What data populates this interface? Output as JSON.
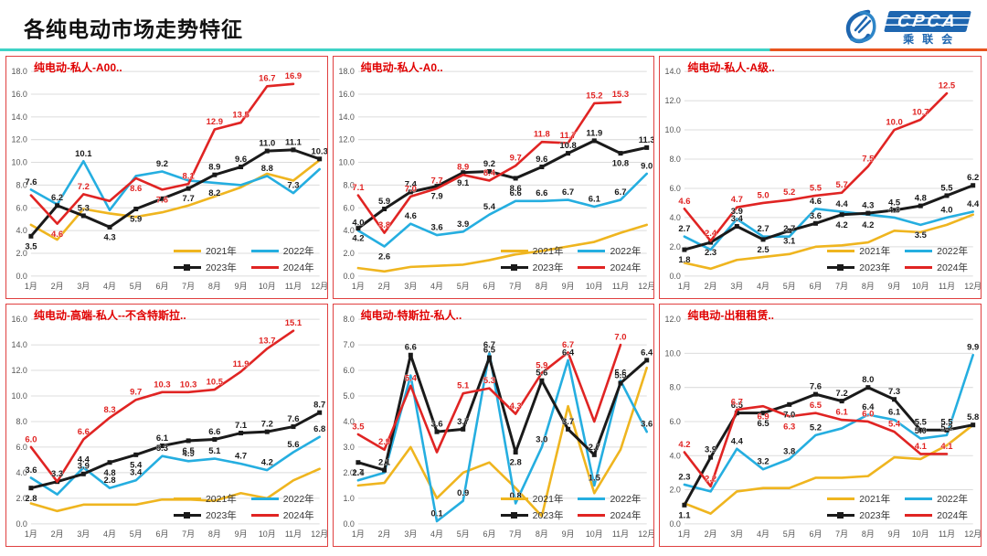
{
  "header": {
    "title": "各纯电动市场走势特征"
  },
  "logo": {
    "cpca_text": "CPCA",
    "sub_text": "乘联会"
  },
  "months": [
    "1月",
    "2月",
    "3月",
    "4月",
    "5月",
    "6月",
    "7月",
    "8月",
    "9月",
    "10月",
    "11月",
    "12月"
  ],
  "legend": [
    "2021年",
    "2022年",
    "2023年",
    "2024年"
  ],
  "colors": {
    "y2021": "#EFB51F",
    "y2022": "#25AEE0",
    "y2023": "#1A1A1A",
    "y2024": "#E02423",
    "grid": "#DCDCDC",
    "axis_text": "#555555",
    "title_red": "#E00000",
    "panel_border": "#E04040",
    "rule_teal": "#3ED3C6",
    "rule_orange": "#E8541E",
    "logo_blue": "#1E66B0"
  },
  "chart_data": [
    {
      "type": "line",
      "title": "纯电动-私人-A00..",
      "ylim": [
        0,
        18
      ],
      "ytick_step": 2,
      "grid": true,
      "legend_position": "bottom-right",
      "series": [
        {
          "name": "2021年",
          "color_key": "y2021",
          "values": [
            4.5,
            3.2,
            5.9,
            5.5,
            5.2,
            5.6,
            6.2,
            7.0,
            7.8,
            9.0,
            8.4,
            10.2
          ],
          "labels": [
            null,
            null,
            null,
            null,
            null,
            null,
            null,
            null,
            null,
            null,
            null,
            null
          ]
        },
        {
          "name": "2022年",
          "color_key": "y2022",
          "label_color": "#1A1A1A",
          "values": [
            7.6,
            6.3,
            10.1,
            5.8,
            8.8,
            9.2,
            8.4,
            8.2,
            8.0,
            8.8,
            7.3,
            9.4
          ],
          "labels": [
            "7.6",
            null,
            "10.1",
            null,
            null,
            "9.2",
            null,
            [
              "8.2",
              "b"
            ],
            null,
            "8.8",
            "7.3",
            null
          ]
        },
        {
          "name": "2023年",
          "color_key": "y2023",
          "marker": true,
          "values": [
            3.5,
            6.2,
            5.3,
            4.3,
            5.9,
            6.8,
            7.7,
            8.9,
            9.6,
            11.0,
            11.1,
            10.3
          ],
          "labels": [
            [
              "3.5",
              "b"
            ],
            "6.2",
            "5.3",
            [
              "4.3",
              "b"
            ],
            [
              "5.9",
              "b"
            ],
            null,
            [
              "7.7",
              "b"
            ],
            "8.9",
            "9.6",
            "11.0",
            "11.1",
            "10.3"
          ]
        },
        {
          "name": "2024年",
          "color_key": "y2024",
          "values": [
            7.1,
            4.6,
            7.2,
            6.6,
            8.6,
            7.6,
            8.1,
            12.9,
            13.5,
            16.7,
            16.9
          ],
          "labels": [
            null,
            [
              "4.6",
              "b"
            ],
            "7.2",
            null,
            [
              "8.6",
              "b"
            ],
            [
              "7.6",
              "b"
            ],
            "8.1",
            "12.9",
            "13.5",
            "16.7",
            "16.9"
          ]
        }
      ]
    },
    {
      "type": "line",
      "title": "纯电动-私人-A0..",
      "ylim": [
        0,
        18
      ],
      "ytick_step": 2,
      "grid": true,
      "legend_position": "bottom-right",
      "series": [
        {
          "name": "2021年",
          "color_key": "y2021",
          "values": [
            0.7,
            0.4,
            0.8,
            0.9,
            1.0,
            1.4,
            1.9,
            2.2,
            2.6,
            3.0,
            3.8,
            4.5
          ],
          "labels": [
            null,
            null,
            null,
            null,
            null,
            null,
            null,
            null,
            null,
            null,
            null,
            null
          ]
        },
        {
          "name": "2022年",
          "color_key": "y2022",
          "label_color": "#1A1A1A",
          "values": [
            4.0,
            2.6,
            4.6,
            3.6,
            3.9,
            5.4,
            6.6,
            6.6,
            6.7,
            6.1,
            6.7,
            9.0
          ],
          "labels": [
            "4.0",
            [
              "2.6",
              "b"
            ],
            "4.6",
            "3.6",
            "3.9",
            "5.4",
            "6.6",
            "6.6",
            "6.7",
            "6.1",
            "6.7",
            "9.0"
          ]
        },
        {
          "name": "2023年",
          "color_key": "y2023",
          "marker": true,
          "values": [
            4.2,
            5.9,
            7.4,
            7.9,
            9.1,
            9.2,
            8.6,
            9.6,
            10.8,
            11.9,
            10.8,
            11.3
          ],
          "labels": [
            [
              "4.2",
              "b"
            ],
            "5.9",
            "7.4",
            [
              "7.9",
              "b"
            ],
            [
              "9.1",
              "b"
            ],
            "9.2",
            [
              "8.6",
              "b"
            ],
            "9.6",
            "10.8",
            "11.9",
            [
              "10.8",
              "b"
            ],
            "11.3"
          ]
        },
        {
          "name": "2024年",
          "color_key": "y2024",
          "values": [
            7.1,
            3.8,
            7.0,
            7.7,
            8.9,
            8.4,
            9.7,
            11.8,
            11.7,
            15.2,
            15.3
          ],
          "labels": [
            "7.1",
            "3.8",
            "7.0",
            "7.7",
            "8.9",
            "8.4",
            "9.7",
            "11.8",
            "11.7",
            "15.2",
            "15.3"
          ]
        }
      ]
    },
    {
      "type": "line",
      "title": "纯电动-私人-A级..",
      "ylim": [
        0,
        14
      ],
      "ytick_step": 2,
      "grid": true,
      "legend_position": "bottom-right",
      "series": [
        {
          "name": "2021年",
          "color_key": "y2021",
          "values": [
            0.9,
            0.5,
            1.1,
            1.3,
            1.5,
            2.0,
            2.1,
            2.3,
            3.1,
            3.0,
            3.5,
            4.2
          ],
          "labels": [
            null,
            null,
            null,
            null,
            null,
            null,
            null,
            null,
            null,
            null,
            null,
            null
          ]
        },
        {
          "name": "2022年",
          "color_key": "y2022",
          "label_color": "#1A1A1A",
          "values": [
            2.7,
            1.8,
            3.9,
            2.7,
            2.7,
            4.6,
            4.4,
            4.2,
            4.0,
            3.5,
            4.0,
            4.4
          ],
          "labels": [
            "2.7",
            null,
            "3.9",
            "2.7",
            "2.7",
            "4.6",
            "4.4",
            [
              "4.2",
              "b"
            ],
            "4.0",
            [
              "3.5",
              "b"
            ],
            "4.0",
            "4.4"
          ]
        },
        {
          "name": "2023年",
          "color_key": "y2023",
          "marker": true,
          "values": [
            1.8,
            2.3,
            3.4,
            2.5,
            3.1,
            3.6,
            4.2,
            4.3,
            4.5,
            4.8,
            5.5,
            6.2
          ],
          "labels": [
            [
              "1.8",
              "b"
            ],
            [
              "2.3",
              "b"
            ],
            "3.4",
            [
              "2.5",
              "b"
            ],
            [
              "3.1",
              "b"
            ],
            "3.6",
            [
              "4.2",
              "b"
            ],
            "4.3",
            "4.5",
            "4.8",
            "5.5",
            "6.2"
          ]
        },
        {
          "name": "2024年",
          "color_key": "y2024",
          "values": [
            4.6,
            2.4,
            4.7,
            5.0,
            5.2,
            5.5,
            5.7,
            7.5,
            10.0,
            10.7,
            12.5
          ],
          "labels": [
            "4.6",
            "2.4",
            "4.7",
            "5.0",
            "5.2",
            "5.5",
            "5.7",
            "7.5",
            "10.0",
            "10.7",
            "12.5"
          ]
        }
      ]
    },
    {
      "type": "line",
      "title": "纯电动-高端-私人--不含特斯拉..",
      "ylim": [
        0,
        16
      ],
      "ytick_step": 2,
      "grid": true,
      "legend_position": "bottom-right",
      "series": [
        {
          "name": "2021年",
          "color_key": "y2021",
          "values": [
            1.6,
            1.0,
            1.5,
            1.5,
            1.5,
            1.9,
            1.9,
            1.8,
            2.4,
            2.0,
            3.4,
            4.3
          ],
          "labels": [
            null,
            null,
            null,
            null,
            null,
            null,
            null,
            null,
            null,
            null,
            null,
            null
          ]
        },
        {
          "name": "2022年",
          "color_key": "y2022",
          "label_color": "#1A1A1A",
          "values": [
            3.6,
            2.3,
            4.4,
            2.8,
            3.4,
            5.3,
            4.9,
            5.1,
            4.7,
            4.2,
            5.6,
            6.8
          ],
          "labels": [
            "3.6",
            null,
            "4.4",
            "2.8",
            "3.4",
            "5.3",
            "4.9",
            "5.1",
            "4.7",
            "4.2",
            "5.6",
            "6.8"
          ]
        },
        {
          "name": "2023年",
          "color_key": "y2023",
          "marker": true,
          "values": [
            2.8,
            3.3,
            3.9,
            4.8,
            5.4,
            6.1,
            6.5,
            6.6,
            7.1,
            7.2,
            7.6,
            8.7
          ],
          "labels": [
            [
              "2.8",
              "b"
            ],
            "3.3",
            "3.9",
            [
              "4.8",
              "b"
            ],
            [
              "5.4",
              "b"
            ],
            "6.1",
            [
              "6.5",
              "b"
            ],
            "6.6",
            "7.1",
            "7.2",
            "7.6",
            "8.7"
          ]
        },
        {
          "name": "2024年",
          "color_key": "y2024",
          "values": [
            6.0,
            3.3,
            6.6,
            8.3,
            9.7,
            10.3,
            10.3,
            10.5,
            11.9,
            13.7,
            15.1
          ],
          "labels": [
            "6.0",
            null,
            "6.6",
            "8.3",
            "9.7",
            "10.3",
            "10.3",
            "10.5",
            "11.9",
            "13.7",
            "15.1"
          ]
        }
      ]
    },
    {
      "type": "line",
      "title": "纯电动-特斯拉-私人..",
      "ylim": [
        0,
        8
      ],
      "ytick_step": 1,
      "grid": true,
      "legend_position": "bottom-right",
      "series": [
        {
          "name": "2021年",
          "color_key": "y2021",
          "values": [
            1.5,
            1.6,
            3.0,
            1.0,
            2.0,
            2.4,
            1.4,
            0.3,
            4.6,
            1.2,
            2.9,
            6.1
          ],
          "labels": [
            null,
            null,
            null,
            null,
            null,
            null,
            null,
            null,
            null,
            null,
            null,
            null
          ]
        },
        {
          "name": "2022年",
          "color_key": "y2022",
          "label_color": "#1A1A1A",
          "values": [
            1.7,
            2.0,
            5.8,
            0.1,
            0.9,
            6.7,
            0.8,
            3.0,
            6.4,
            1.5,
            5.6,
            3.6
          ],
          "labels": [
            "1.7",
            null,
            null,
            "0.1",
            "0.9",
            "6.7",
            "0.8",
            "3.0",
            "6.4",
            "1.5",
            "5.6",
            "3.6"
          ]
        },
        {
          "name": "2023年",
          "color_key": "y2023",
          "marker": true,
          "values": [
            2.4,
            2.1,
            6.6,
            3.6,
            3.7,
            6.5,
            2.8,
            5.6,
            3.7,
            2.7,
            5.5,
            6.4
          ],
          "labels": [
            [
              "2.4",
              "b"
            ],
            "2.1",
            "6.6",
            "3.6",
            "3.7",
            "6.5",
            [
              "2.8",
              "b"
            ],
            "5.6",
            "3.7",
            "2.7",
            "5.5",
            "6.4"
          ]
        },
        {
          "name": "2024年",
          "color_key": "y2024",
          "values": [
            3.5,
            2.9,
            5.4,
            2.8,
            5.1,
            5.3,
            4.3,
            5.9,
            6.7,
            4.0,
            7.0
          ],
          "labels": [
            "3.5",
            "2.9",
            "5.4",
            null,
            "5.1",
            "5.3",
            "4.3",
            "5.9",
            "6.7",
            null,
            "7.0"
          ]
        }
      ]
    },
    {
      "type": "line",
      "title": "纯电动-出租租赁..",
      "ylim": [
        0,
        12
      ],
      "ytick_step": 2,
      "grid": true,
      "legend_position": "bottom-right",
      "series": [
        {
          "name": "2021年",
          "color_key": "y2021",
          "values": [
            1.2,
            0.6,
            1.9,
            2.1,
            2.1,
            2.7,
            2.7,
            2.8,
            3.9,
            3.8,
            4.6,
            5.8
          ],
          "labels": [
            null,
            null,
            null,
            null,
            null,
            null,
            null,
            null,
            null,
            null,
            null,
            null
          ]
        },
        {
          "name": "2022年",
          "color_key": "y2022",
          "label_color": "#1A1A1A",
          "values": [
            2.3,
            1.9,
            4.4,
            3.2,
            3.8,
            5.2,
            5.6,
            6.4,
            6.1,
            5.0,
            5.2,
            9.9
          ],
          "labels": [
            "2.3",
            null,
            "4.4",
            "3.2",
            "3.8",
            "5.2",
            null,
            "6.4",
            "6.1",
            "5.0",
            "5.2",
            "9.9"
          ]
        },
        {
          "name": "2023年",
          "color_key": "y2023",
          "marker": true,
          "values": [
            1.1,
            3.9,
            6.5,
            6.5,
            7.0,
            7.6,
            7.2,
            8.0,
            7.3,
            5.5,
            5.5,
            5.8
          ],
          "labels": [
            [
              "1.1",
              "b"
            ],
            "3.9",
            "6.5",
            [
              "6.5",
              "b"
            ],
            [
              "7.0",
              "b"
            ],
            "7.6",
            "7.2",
            "8.0",
            "7.3",
            "5.5",
            "5.5",
            "5.8"
          ]
        },
        {
          "name": "2024年",
          "color_key": "y2024",
          "values": [
            4.2,
            2.2,
            6.7,
            6.9,
            6.3,
            6.5,
            6.1,
            6.0,
            5.4,
            4.1,
            4.1
          ],
          "labels": [
            "4.2",
            "2.2",
            "6.7",
            [
              "6.9",
              "b"
            ],
            [
              "6.3",
              "b"
            ],
            "6.5",
            "6.1",
            "6.0",
            "5.4",
            "4.1",
            "4.1"
          ]
        }
      ]
    }
  ]
}
